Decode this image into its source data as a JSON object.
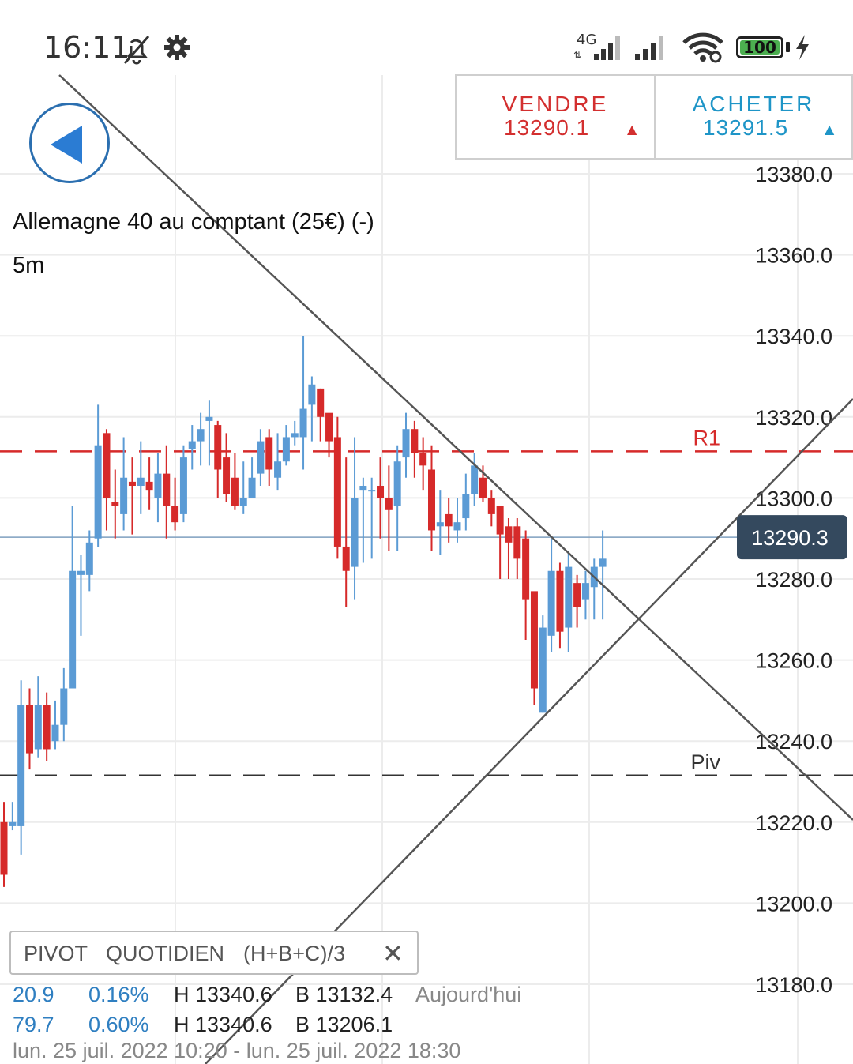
{
  "status_bar": {
    "time": "16:11",
    "network": "4G",
    "battery": "100",
    "battery_level": 1.0
  },
  "header": {
    "instrument": "Allemagne 40 au comptant (25€) (-)",
    "timeframe": "5m"
  },
  "trade": {
    "sell_label": "VENDRE",
    "sell_price": "13290.1",
    "sell_arrow": "▲",
    "buy_label": "ACHETER",
    "buy_price": "13291.5",
    "buy_arrow": "▲"
  },
  "indicator": {
    "name": "PIVOT",
    "period": "QUOTIDIEN",
    "formula": "(H+B+C)/3",
    "close_label": "✕"
  },
  "stats": [
    {
      "change": "20.9",
      "change_pct": "0.16%",
      "high": "H 13340.6",
      "low": "B 13132.4",
      "label": "Aujourd'hui"
    },
    {
      "change": "79.7",
      "change_pct": "0.60%",
      "high": "H 13340.6",
      "low": "B 13206.1",
      "label": ""
    }
  ],
  "range": "lun. 25 juil. 2022 10:20 - lun. 25 juil. 2022 18:30",
  "colors": {
    "up": "#5b9bd5",
    "down": "#d62a2a",
    "sell": "#d32f2f",
    "buy": "#1e95c7",
    "price_tag": "#34495e"
  },
  "chart_data": {
    "type": "candlestick",
    "ylim": [
      13170,
      13390
    ],
    "y_ticks": [
      "13380.0",
      "13360.0",
      "13340.0",
      "13320.0",
      "13300.0",
      "13280.0",
      "13260.0",
      "13240.0",
      "13220.0",
      "13200.0",
      "13180.0"
    ],
    "y_tick_values": [
      13380,
      13360,
      13340,
      13320,
      13300,
      13280,
      13260,
      13240,
      13220,
      13200,
      13180
    ],
    "current_price": 13290.3,
    "current_price_label": "13290.3",
    "levels": [
      {
        "name": "R1",
        "value": 13311.5,
        "color": "#d62a2a"
      },
      {
        "name": "Piv",
        "value": 13231.5,
        "color": "#333333"
      }
    ],
    "candles": [
      [
        13220,
        13207,
        13225,
        13204
      ],
      [
        13219,
        13220,
        13225,
        13218
      ],
      [
        13219,
        13249,
        13255,
        13212
      ],
      [
        13249,
        13237,
        13253,
        13233
      ],
      [
        13238,
        13249,
        13256,
        13236
      ],
      [
        13249,
        13238,
        13252,
        13235
      ],
      [
        13240,
        13244,
        13250,
        13238
      ],
      [
        13244,
        13253,
        13258,
        13240
      ],
      [
        13253,
        13282,
        13298,
        13266
      ],
      [
        13281,
        13282,
        13286,
        13266
      ],
      [
        13281,
        13289,
        13292,
        13277
      ],
      [
        13290,
        13313,
        13323,
        13288
      ],
      [
        13316,
        13300,
        13317,
        13292
      ],
      [
        13299,
        13298,
        13307,
        13290
      ],
      [
        13296,
        13305,
        13315,
        13292
      ],
      [
        13304,
        13303,
        13310,
        13291
      ],
      [
        13303,
        13305,
        13314,
        13296
      ],
      [
        13304,
        13302,
        13310,
        13297
      ],
      [
        13300,
        13306,
        13311,
        13294
      ],
      [
        13306,
        13298,
        13313,
        13290
      ],
      [
        13298,
        13294,
        13305,
        13292
      ],
      [
        13296,
        13310,
        13313,
        13294
      ],
      [
        13312,
        13314,
        13318,
        13307
      ],
      [
        13314,
        13317,
        13321,
        13308
      ],
      [
        13319,
        13320,
        13324,
        13308
      ],
      [
        13318,
        13307,
        13319,
        13300
      ],
      [
        13310,
        13301,
        13316,
        13299
      ],
      [
        13305,
        13298,
        13311,
        13297
      ],
      [
        13298,
        13300,
        13309,
        13296
      ],
      [
        13300,
        13305,
        13310,
        13300
      ],
      [
        13306,
        13314,
        13317,
        13303
      ],
      [
        13315,
        13307,
        13317,
        13303
      ],
      [
        13305,
        13309,
        13316,
        13302
      ],
      [
        13309,
        13315,
        13318,
        13308
      ],
      [
        13315,
        13316,
        13319,
        13313
      ],
      [
        13315,
        13322,
        13340,
        13307
      ],
      [
        13323,
        13328,
        13330,
        13314
      ],
      [
        13327,
        13320,
        13327,
        13314
      ],
      [
        13321,
        13314,
        13318,
        13310
      ],
      [
        13315,
        13288,
        13320,
        13285
      ],
      [
        13288,
        13282,
        13310,
        13273
      ],
      [
        13283,
        13300,
        13315,
        13275
      ],
      [
        13302,
        13303,
        13305,
        13284
      ],
      [
        13302,
        13302,
        13305,
        13285
      ],
      [
        13303,
        13300,
        13310,
        13290
      ],
      [
        13300,
        13297,
        13308,
        13287
      ],
      [
        13298,
        13309,
        13313,
        13287
      ],
      [
        13310,
        13317,
        13321,
        13305
      ],
      [
        13317,
        13311,
        13319,
        13305
      ],
      [
        13311,
        13308,
        13315,
        13302
      ],
      [
        13307,
        13292,
        13313,
        13287
      ],
      [
        13293,
        13294,
        13302,
        13286
      ],
      [
        13296,
        13293,
        13300,
        13289
      ],
      [
        13292,
        13294,
        13300,
        13289
      ],
      [
        13295,
        13301,
        13306,
        13292
      ],
      [
        13301,
        13308,
        13311,
        13298
      ],
      [
        13305,
        13300,
        13308,
        13299
      ],
      [
        13300,
        13296,
        13302,
        13293
      ],
      [
        13298,
        13291,
        13297,
        13280
      ],
      [
        13293,
        13289,
        13295,
        13280
      ],
      [
        13293,
        13285,
        13295,
        13280
      ],
      [
        13290,
        13275,
        13292,
        13265
      ],
      [
        13277,
        13253,
        13276,
        13249
      ],
      [
        13247,
        13268,
        13271,
        13247
      ],
      [
        13266,
        13282,
        13290,
        13262
      ],
      [
        13282,
        13267,
        13284,
        13263
      ],
      [
        13268,
        13283,
        13287,
        13262
      ],
      [
        13279,
        13273,
        13281,
        13268
      ],
      [
        13275,
        13279,
        13282,
        13270
      ],
      [
        13278,
        13283,
        13285,
        13270
      ],
      [
        13283,
        13285,
        13292,
        13270
      ]
    ]
  }
}
